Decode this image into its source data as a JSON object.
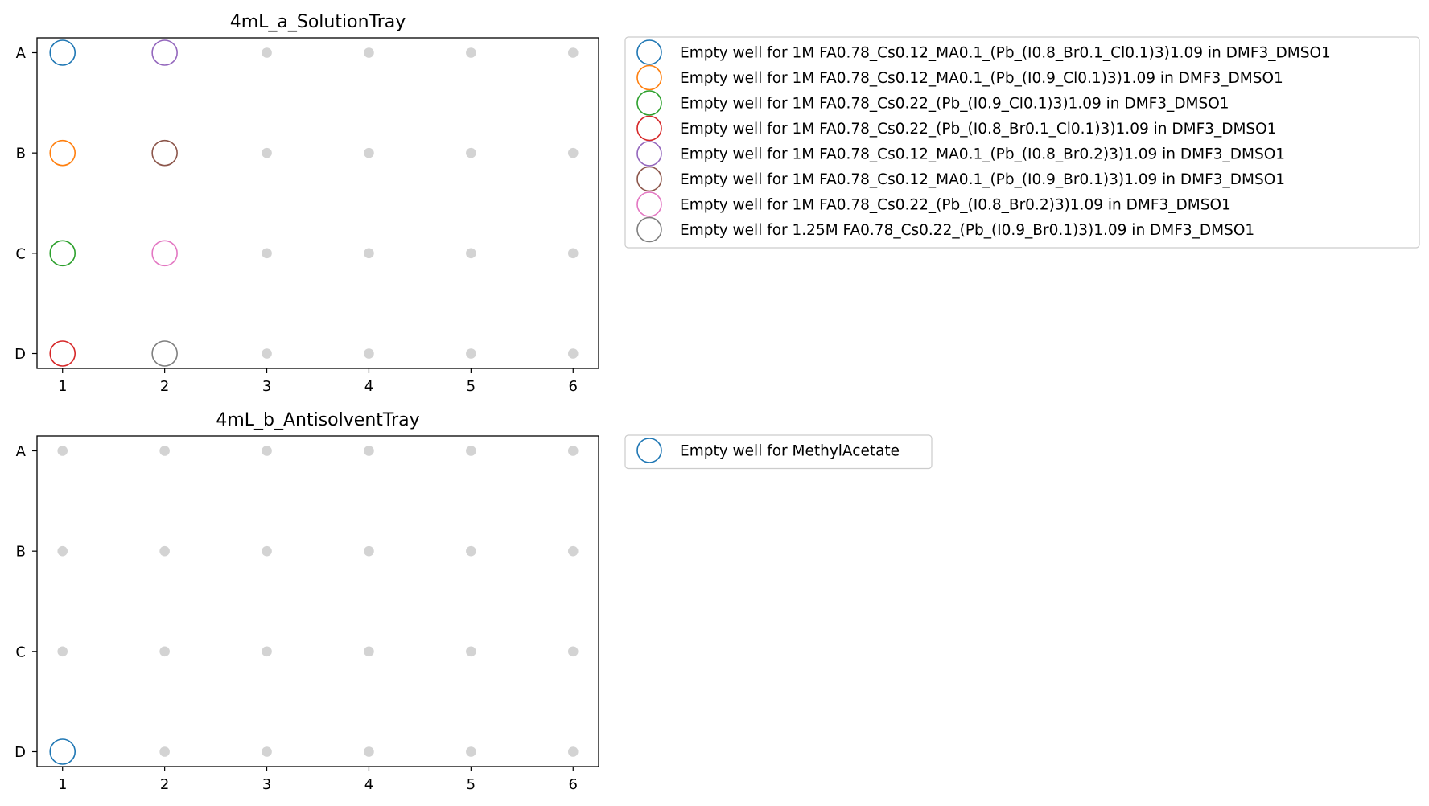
{
  "chart_data": [
    {
      "type": "scatter",
      "title": "4mL_a_SolutionTray",
      "x_ticks": [
        "1",
        "2",
        "3",
        "4",
        "5",
        "6"
      ],
      "y_ticks": [
        "A",
        "B",
        "C",
        "D"
      ],
      "xlim": [
        0.75,
        6.25
      ],
      "ylim": [
        "A",
        "D"
      ],
      "grid": false,
      "legend_placement": "outside-right-top",
      "empty_well_color": "#d3d3d3",
      "series": [
        {
          "name": "Empty well for 1M FA0.78_Cs0.12_MA0.1_(Pb_(I0.8_Br0.1_Cl0.1)3)1.09 in DMF3_DMSO1",
          "color": "#1f77b4",
          "x": 1,
          "y": "A"
        },
        {
          "name": "Empty well for 1M FA0.78_Cs0.12_MA0.1_(Pb_(I0.9_Cl0.1)3)1.09 in DMF3_DMSO1",
          "color": "#ff7f0e",
          "x": 1,
          "y": "B"
        },
        {
          "name": "Empty well for 1M FA0.78_Cs0.22_(Pb_(I0.9_Cl0.1)3)1.09 in DMF3_DMSO1",
          "color": "#2ca02c",
          "x": 1,
          "y": "C"
        },
        {
          "name": "Empty well for 1M FA0.78_Cs0.22_(Pb_(I0.8_Br0.1_Cl0.1)3)1.09 in DMF3_DMSO1",
          "color": "#d62728",
          "x": 1,
          "y": "D"
        },
        {
          "name": "Empty well for 1M FA0.78_Cs0.12_MA0.1_(Pb_(I0.8_Br0.2)3)1.09 in DMF3_DMSO1",
          "color": "#9467bd",
          "x": 2,
          "y": "A"
        },
        {
          "name": "Empty well for 1M FA0.78_Cs0.12_MA0.1_(Pb_(I0.9_Br0.1)3)1.09 in DMF3_DMSO1",
          "color": "#8c564b",
          "x": 2,
          "y": "B"
        },
        {
          "name": "Empty well for 1M FA0.78_Cs0.22_(Pb_(I0.8_Br0.2)3)1.09 in DMF3_DMSO1",
          "color": "#e377c2",
          "x": 2,
          "y": "C"
        },
        {
          "name": "Empty well for 1.25M FA0.78_Cs0.22_(Pb_(I0.9_Br0.1)3)1.09 in DMF3_DMSO1",
          "color": "#7f7f7f",
          "x": 2,
          "y": "D"
        }
      ]
    },
    {
      "type": "scatter",
      "title": "4mL_b_AntisolventTray",
      "x_ticks": [
        "1",
        "2",
        "3",
        "4",
        "5",
        "6"
      ],
      "y_ticks": [
        "A",
        "B",
        "C",
        "D"
      ],
      "xlim": [
        0.75,
        6.25
      ],
      "ylim": [
        "A",
        "D"
      ],
      "grid": false,
      "legend_placement": "outside-right-top",
      "empty_well_color": "#d3d3d3",
      "series": [
        {
          "name": "Empty well for MethylAcetate",
          "color": "#1f77b4",
          "x": 1,
          "y": "D"
        }
      ]
    }
  ]
}
